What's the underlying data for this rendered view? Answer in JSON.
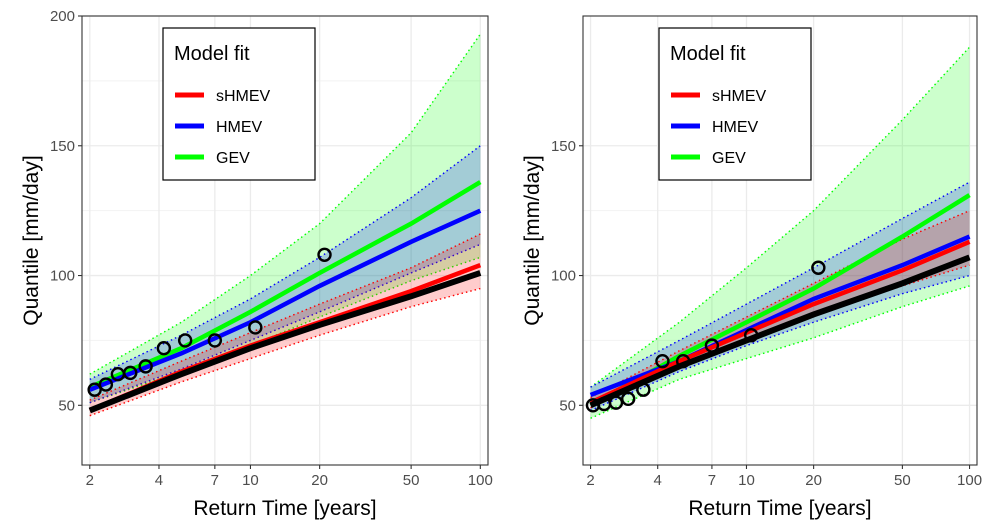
{
  "chart_data": [
    {
      "type": "line",
      "xlabel": "Return Time [years]",
      "ylabel": "Quantile [mm/day]",
      "x_scale": "log",
      "xlim": [
        1.85,
        108
      ],
      "ylim": [
        27,
        200
      ],
      "x_ticks": [
        2,
        4,
        7,
        10,
        20,
        50,
        100
      ],
      "x_tick_labels": [
        "2",
        "4",
        "7",
        "10",
        "20",
        "50",
        "100"
      ],
      "y_ticks": [
        50,
        100,
        150,
        200
      ],
      "y_tick_labels": [
        "50",
        "100",
        "150",
        "200"
      ],
      "grid": true,
      "legend": {
        "title": "Model fit",
        "position": "top-left",
        "entries": [
          {
            "label": "sHMEV",
            "color": "#ff0000"
          },
          {
            "label": "HMEV",
            "color": "#0000ff"
          },
          {
            "label": "GEV",
            "color": "#00ff00"
          }
        ]
      },
      "bands": [
        {
          "model": "GEV",
          "color": "#00ff00",
          "x": [
            2,
            5,
            10,
            20,
            50,
            100
          ],
          "lower": [
            51,
            63,
            73,
            84,
            98,
            107
          ],
          "upper": [
            62,
            82,
            100,
            120,
            155,
            193
          ]
        },
        {
          "model": "HMEV",
          "color": "#0000ff",
          "x": [
            2,
            5,
            10,
            20,
            50,
            100
          ],
          "lower": [
            51,
            64,
            75,
            86,
            101,
            112
          ],
          "upper": [
            60,
            77,
            91,
            107,
            130,
            150
          ]
        },
        {
          "model": "sHMEV",
          "color": "#ff0000",
          "x": [
            2,
            5,
            10,
            20,
            50,
            100
          ],
          "lower": [
            46,
            59,
            68,
            77,
            88,
            95
          ],
          "upper": [
            52,
            67,
            78,
            89,
            103,
            116
          ]
        }
      ],
      "series": [
        {
          "name": "GEV",
          "color": "#00ff00",
          "x": [
            2,
            5,
            10,
            20,
            50,
            100
          ],
          "values": [
            57,
            72,
            86,
            101,
            120,
            136
          ]
        },
        {
          "name": "HMEV",
          "color": "#0000ff",
          "x": [
            2,
            5,
            10,
            20,
            50,
            100
          ],
          "values": [
            56,
            70,
            82,
            96,
            113,
            125
          ]
        },
        {
          "name": "sHMEV",
          "color": "#ff0000",
          "x": [
            2,
            5,
            10,
            20,
            50,
            100
          ],
          "values": [
            48,
            63,
            73,
            82,
            94,
            104
          ]
        },
        {
          "color": "#000000",
          "x": [
            2,
            5,
            10,
            20,
            50,
            100
          ],
          "values": [
            48,
            62,
            72,
            81,
            92,
            101
          ]
        }
      ],
      "observations": {
        "x": [
          2.1,
          2.35,
          2.65,
          3.0,
          3.5,
          4.2,
          5.2,
          7.0,
          10.5,
          21
        ],
        "y": [
          56,
          58,
          62,
          62.5,
          65,
          72,
          75,
          75,
          80,
          108
        ]
      }
    },
    {
      "type": "line",
      "xlabel": "Return Time [years]",
      "ylabel": "Quantile [mm/day]",
      "x_scale": "log",
      "xlim": [
        1.85,
        108
      ],
      "ylim": [
        27,
        200
      ],
      "x_ticks": [
        2,
        4,
        7,
        10,
        20,
        50,
        100
      ],
      "x_tick_labels": [
        "2",
        "4",
        "7",
        "10",
        "20",
        "50",
        "100"
      ],
      "y_ticks": [
        50,
        100,
        150
      ],
      "y_tick_labels": [
        "50",
        "100",
        "150"
      ],
      "grid": true,
      "legend": {
        "title": "Model fit",
        "position": "top-left",
        "entries": [
          {
            "label": "sHMEV",
            "color": "#ff0000"
          },
          {
            "label": "HMEV",
            "color": "#0000ff"
          },
          {
            "label": "GEV",
            "color": "#00ff00"
          }
        ]
      },
      "bands": [
        {
          "model": "GEV",
          "color": "#00ff00",
          "x": [
            2,
            5,
            10,
            20,
            50,
            100
          ],
          "lower": [
            45,
            60,
            68,
            76,
            88,
            96
          ],
          "upper": [
            57,
            82,
            103,
            125,
            160,
            188
          ]
        },
        {
          "model": "HMEV",
          "color": "#0000ff",
          "x": [
            2,
            5,
            10,
            20,
            50,
            100
          ],
          "lower": [
            48,
            63,
            73,
            82,
            93,
            100
          ],
          "upper": [
            57,
            75,
            89,
            103,
            122,
            136
          ]
        },
        {
          "model": "sHMEV",
          "color": "#ff0000",
          "x": [
            2,
            5,
            10,
            20,
            50,
            100
          ],
          "lower": [
            49,
            65,
            75,
            85,
            96,
            104
          ],
          "upper": [
            53,
            71,
            84,
            97,
            114,
            125
          ]
        }
      ],
      "series": [
        {
          "name": "GEV",
          "color": "#00ff00",
          "x": [
            2,
            5,
            10,
            20,
            50,
            100
          ],
          "values": [
            50,
            69,
            82,
            95,
            115,
            131
          ]
        },
        {
          "name": "HMEV",
          "color": "#0000ff",
          "x": [
            2,
            5,
            10,
            20,
            50,
            100
          ],
          "values": [
            54,
            67,
            79,
            91,
            104,
            115
          ]
        },
        {
          "name": "sHMEV",
          "color": "#ff0000",
          "x": [
            2,
            5,
            10,
            20,
            50,
            100
          ],
          "values": [
            51,
            67,
            78,
            89,
            102,
            113
          ]
        },
        {
          "color": "#000000",
          "x": [
            2,
            5,
            10,
            20,
            50,
            100
          ],
          "values": [
            50,
            65,
            75,
            85,
            97,
            107
          ]
        }
      ],
      "observations": {
        "x": [
          2.05,
          2.3,
          2.6,
          2.95,
          3.45,
          4.2,
          5.2,
          7.0,
          10.5,
          21
        ],
        "y": [
          50,
          50.5,
          51,
          52.5,
          56,
          67,
          67,
          73,
          77,
          103
        ]
      }
    }
  ]
}
